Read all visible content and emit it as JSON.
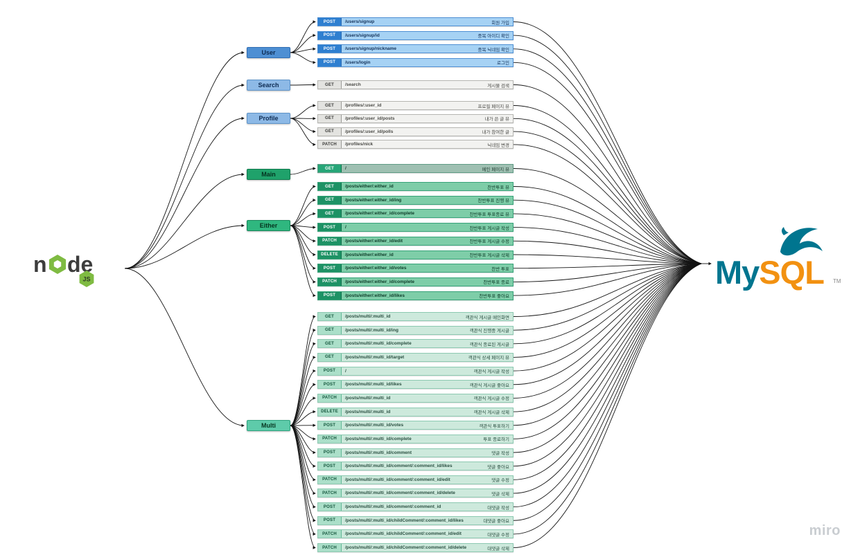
{
  "watermark": "miro",
  "diagram": {
    "source": {
      "name": "node.js",
      "n_left": "n",
      "n_right": "de",
      "badge": "JS"
    },
    "target": {
      "name": "MySQL",
      "text_my": "My",
      "text_sql": "SQL",
      "tm": "TM"
    },
    "groups": [
      {
        "id": "user",
        "label": "User",
        "colors": {
          "group_fill": "#4e8fd3",
          "group_border": "#2d6cb4",
          "group_text": "#0d2b52",
          "row_fill": "#a6d2f4",
          "row_border": "#4e8fd3",
          "badge_fill": "#2e7fd0",
          "badge_border": "#2d6cb4",
          "badge_text": "#ffffff",
          "text": "#13325a"
        },
        "rows": [
          {
            "method": "POST",
            "path": "/users/signup",
            "desc": "회원 가입"
          },
          {
            "method": "POST",
            "path": "/users/signup/id",
            "desc": "중복 아이디 확인"
          },
          {
            "method": "POST",
            "path": "/users/signup/nickname",
            "desc": "중복 닉네임 확인"
          },
          {
            "method": "POST",
            "path": "/users/login",
            "desc": "로그인"
          }
        ]
      },
      {
        "id": "search",
        "label": "Search",
        "colors": {
          "group_fill": "#8db9e6",
          "group_border": "#5d93c9",
          "group_text": "#0d2b52",
          "row_fill": "#f2f2f0",
          "row_border": "#b5b5b1",
          "badge_fill": "#e3e3e0",
          "badge_border": "#9a9a96",
          "badge_text": "#3a3a38",
          "text": "#4a4a46"
        },
        "rows": [
          {
            "method": "GET",
            "path": "/search",
            "desc": "게시물 검색"
          }
        ]
      },
      {
        "id": "profile",
        "label": "Profile",
        "colors": {
          "group_fill": "#8db9e6",
          "group_border": "#5d93c9",
          "group_text": "#0d2b52",
          "row_fill": "#f2f2f0",
          "row_border": "#b5b5b1",
          "badge_fill": "#e3e3e0",
          "badge_border": "#9a9a96",
          "badge_text": "#3a3a38",
          "text": "#4a4a46"
        },
        "rows": [
          {
            "method": "GET",
            "path": "/profiles/:user_id",
            "desc": "프로필 페이지 뷰"
          },
          {
            "method": "GET",
            "path": "/profiles/:user_id/posts",
            "desc": "내가 쓴 글 뷰"
          },
          {
            "method": "GET",
            "path": "/profiles/:user_id/polls",
            "desc": "내가 참여한 글"
          },
          {
            "method": "PATCH",
            "path": "/profiles/nick",
            "desc": "닉네임 변경"
          }
        ]
      },
      {
        "id": "main",
        "label": "Main",
        "colors": {
          "group_fill": "#1fa26b",
          "group_border": "#0f7a4d",
          "group_text": "#04331f",
          "row_fill": "#9fc0b2",
          "row_border": "#5f9b85",
          "badge_fill": "#27a678",
          "badge_border": "#0f7a4d",
          "badge_text": "#ffffff",
          "text": "#1f3a30"
        },
        "rows": [
          {
            "method": "GET",
            "path": "/",
            "desc": "메인 페이지 뷰"
          }
        ]
      },
      {
        "id": "either",
        "label": "Either",
        "colors": {
          "group_fill": "#2fb77f",
          "group_border": "#17875a",
          "group_text": "#06341f",
          "row_fill": "#7ecda8",
          "row_border": "#37a379",
          "badge_fill": "#1d9265",
          "badge_border": "#10714c",
          "badge_text": "#ffffff",
          "text": "#0d3b28"
        },
        "rows": [
          {
            "method": "GET",
            "path": "/posts/either/:either_id",
            "desc": "찬반투표 뷰"
          },
          {
            "method": "GET",
            "path": "/posts/either/:either_id/ing",
            "desc": "찬반투표 진행 뷰"
          },
          {
            "method": "GET",
            "path": "/posts/either/:either_id/complete",
            "desc": "찬반투표 투표종료 뷰"
          },
          {
            "method": "POST",
            "path": "/",
            "desc": "찬반투표 게시글 작성"
          },
          {
            "method": "PATCH",
            "path": "/posts/either/:either_id/edit",
            "desc": "찬반투표 게시글 수정"
          },
          {
            "method": "DELETE",
            "path": "/posts/either/:either_id",
            "desc": "찬반투표 게시글 삭제"
          },
          {
            "method": "POST",
            "path": "/posts/either/:either_id/votes",
            "desc": "찬반 투표"
          },
          {
            "method": "PATCH",
            "path": "/posts/either/:either_id/complete",
            "desc": "찬반투표 종료"
          },
          {
            "method": "POST",
            "path": "/posts/either/:either_id/likes",
            "desc": "찬반투표 좋아요"
          }
        ]
      },
      {
        "id": "multi",
        "label": "Multi",
        "colors": {
          "group_fill": "#5ecbaa",
          "group_border": "#2fa37f",
          "group_text": "#06341f",
          "row_fill": "#cde9dc",
          "row_border": "#8cc9b1",
          "badge_fill": "#abdfc9",
          "badge_border": "#63b897",
          "badge_text": "#14553c",
          "text": "#2a4f41"
        },
        "rows": [
          {
            "method": "GET",
            "path": "/posts/multi/:multi_id",
            "desc": "객관식 게시글 메인화면"
          },
          {
            "method": "GET",
            "path": "/posts/multi/:multi_id/ing",
            "desc": "객관식 진행중 게시글"
          },
          {
            "method": "GET",
            "path": "/posts/multi/:multi_id/complete",
            "desc": "객관식 종료된 게시글"
          },
          {
            "method": "GET",
            "path": "/posts/multi/:multi_id/target",
            "desc": "객관식 상세 페이지 뷰"
          },
          {
            "method": "POST",
            "path": "/",
            "desc": "객관식 게시글 작성"
          },
          {
            "method": "POST",
            "path": "/posts/multi/:multi_id/likes",
            "desc": "객관식 게시글 좋아요"
          },
          {
            "method": "PATCH",
            "path": "/posts/multi/:multi_id",
            "desc": "객관식 게시글 수정"
          },
          {
            "method": "DELETE",
            "path": "/posts/multi/:multi_id",
            "desc": "객관식 게시글 삭제"
          },
          {
            "method": "POST",
            "path": "/posts/multi/:multi_id/votes",
            "desc": "객관식 투표하기"
          },
          {
            "method": "PATCH",
            "path": "/posts/multi/:multi_id/complete",
            "desc": "투표 종료하기"
          },
          {
            "method": "POST",
            "path": "/posts/multi/:multi_id/comment",
            "desc": "댓글 작성"
          },
          {
            "method": "POST",
            "path": "/posts/multi/:multi_id/comment/:comment_id/likes",
            "desc": "댓글 좋아요"
          },
          {
            "method": "PATCH",
            "path": "/posts/multi/:multi_id/comment/:comment_id/edit",
            "desc": "댓글 수정"
          },
          {
            "method": "PATCH",
            "path": "/posts/multi/:multi_id/comment/:comment_id/delete",
            "desc": "댓글 삭제"
          },
          {
            "method": "POST",
            "path": "/posts/multi/:multi_id/comment/:comment_id",
            "desc": "대댓글 작성"
          },
          {
            "method": "POST",
            "path": "/posts/multi/:multi_id/childComment/:comment_id/likes",
            "desc": "대댓글 좋아요"
          },
          {
            "method": "PATCH",
            "path": "/posts/multi/:multi_id/childComment/:comment_id/edit",
            "desc": "대댓글 수정"
          },
          {
            "method": "PATCH",
            "path": "/posts/multi/:multi_id/childComment/:comment_id/delete",
            "desc": "대댓글 삭제"
          }
        ]
      }
    ]
  }
}
